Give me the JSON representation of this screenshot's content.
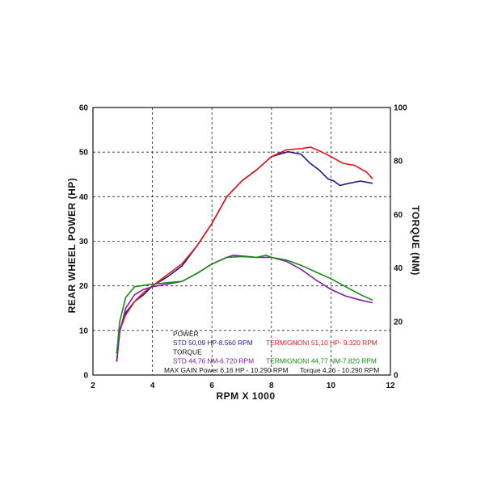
{
  "colors": {
    "std_power": "#1a1a8c",
    "termignoni_power": "#e8161b",
    "std_torque": "#7e1fa0",
    "termignoni_torque": "#1b8a1b",
    "text": "#111111",
    "grid": "#222222"
  },
  "chart_data": {
    "type": "line",
    "xlabel": "RPM X 1000",
    "ylabel_left": "REAR WHEEL POWER (HP)",
    "ylabel_right": "TORQUE (NM)",
    "xlim": [
      2,
      12
    ],
    "ylim_left": [
      0,
      60
    ],
    "ylim_right": [
      0,
      100
    ],
    "x_ticks": [
      "2",
      "4",
      "6",
      "8",
      "10",
      "12"
    ],
    "y_left_ticks": [
      "0",
      "10",
      "20",
      "30",
      "40",
      "50",
      "60"
    ],
    "y_right_ticks": [
      "0",
      "20",
      "40",
      "60",
      "80",
      "100"
    ],
    "grid": true,
    "series": [
      {
        "name": "STD",
        "group": "POWER",
        "axis": "left",
        "color": "#1a1a8c",
        "x": [
          2.8,
          2.9,
          3.1,
          3.4,
          3.7,
          4.0,
          4.5,
          5.0,
          5.5,
          6.0,
          6.5,
          7.0,
          7.5,
          8.0,
          8.56,
          9.0,
          9.3,
          9.6,
          9.9,
          10.1,
          10.3,
          10.6,
          11.0,
          11.4
        ],
        "y": [
          3,
          10,
          14,
          16.5,
          18,
          20,
          22,
          24.5,
          29,
          34,
          40,
          43.5,
          46,
          49,
          50.09,
          49.5,
          47.5,
          46,
          44,
          43.5,
          42.5,
          43,
          43.5,
          43
        ]
      },
      {
        "name": "TERMIGNONI",
        "group": "POWER",
        "axis": "left",
        "color": "#e8161b",
        "x": [
          2.8,
          2.9,
          3.1,
          3.4,
          3.7,
          4.0,
          4.5,
          5.0,
          5.5,
          6.0,
          6.5,
          7.0,
          7.5,
          8.0,
          8.5,
          9.0,
          9.32,
          9.6,
          10.0,
          10.4,
          10.8,
          11.2,
          11.4
        ],
        "y": [
          3,
          10,
          13.5,
          16.5,
          18.5,
          20,
          22.5,
          25,
          29,
          34,
          40,
          43.5,
          46,
          49,
          50.5,
          50.8,
          51.1,
          50.3,
          49,
          47.5,
          47,
          45.5,
          44
        ]
      },
      {
        "name": "STD",
        "group": "TORQUE",
        "axis": "right",
        "color": "#7e1fa0",
        "x": [
          2.8,
          2.9,
          3.1,
          3.4,
          3.7,
          4.0,
          4.5,
          5.0,
          5.5,
          6.0,
          6.5,
          6.72,
          7.0,
          7.5,
          8.0,
          8.5,
          9.0,
          9.5,
          10.0,
          10.5,
          11.0,
          11.4
        ],
        "y": [
          5,
          16,
          25,
          30,
          32,
          33,
          34,
          35,
          38,
          41.5,
          44,
          44.76,
          44.5,
          44,
          44,
          42.5,
          39.5,
          35.5,
          32,
          29.5,
          28,
          27
        ]
      },
      {
        "name": "TERMIGNONI",
        "group": "TORQUE",
        "axis": "right",
        "color": "#1b8a1b",
        "x": [
          2.8,
          2.9,
          3.1,
          3.4,
          3.7,
          4.0,
          4.5,
          5.0,
          5.5,
          6.0,
          6.5,
          7.0,
          7.5,
          7.82,
          8.0,
          8.5,
          9.0,
          9.5,
          10.0,
          10.5,
          11.0,
          11.4
        ],
        "y": [
          8,
          20,
          29,
          33,
          33.5,
          34,
          34.5,
          35,
          38,
          41.5,
          44,
          44.3,
          44,
          44.77,
          44,
          43,
          41,
          38.5,
          36,
          33,
          30,
          28
        ]
      }
    ],
    "legend_lines": [
      {
        "parts": [
          {
            "text": "POWER",
            "color": "#111111"
          }
        ]
      },
      {
        "parts": [
          {
            "text": "STD  50,09 HP-8.560 RPM",
            "color": "#1a1a8c"
          },
          {
            "text": "TERMIGNONI 51,10 HP- 9.320 RPM",
            "color": "#e8161b"
          }
        ]
      },
      {
        "parts": [
          {
            "text": "TORQUE",
            "color": "#111111"
          }
        ]
      },
      {
        "parts": [
          {
            "text": "STD  44,76 NM-6.720 RPM",
            "color": "#7e1fa0"
          },
          {
            "text": "TERMIGNONI  44,77 NM-7.820 RPM",
            "color": "#1b8a1b"
          }
        ]
      },
      {
        "parts": [
          {
            "text": "MAX GAIN Power 6,16 HP - 10.290 RPM",
            "color": "#111111"
          },
          {
            "text": "Torque 4,26 - 10.290 RPM",
            "color": "#111111"
          }
        ]
      }
    ]
  }
}
